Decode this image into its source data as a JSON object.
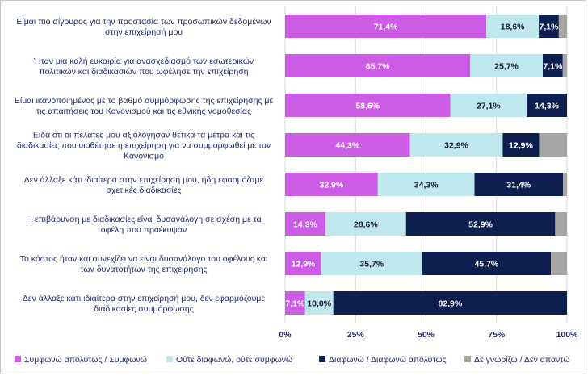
{
  "chart_data": {
    "type": "bar",
    "orientation": "horizontal",
    "stacked": true,
    "categories": [
      [
        "Είμαι πιο σίγουρος για την προστασία των προσωπικών δεδομένων",
        "στην επιχείρησή μου"
      ],
      [
        "Ήταν μια καλή ευκαιρία για ανασχεδιασμό των εσωτερικών",
        "πολιτικών και διαδικασιών που ωφέλησε την επιχείρηση"
      ],
      [
        "Είμαι ικανοποιημένος με το βαθμό συμμόρφωσης της επιχείρησης με",
        "τις απαιτήσεις του Κανονισμού και τις εθνικής νομοθεσίας"
      ],
      [
        "Είδα ότι οι πελάτες μου αξιολόγησαν θετικά τα μέτρα και τις",
        "διαδικασίες που υιοθέτησε η επιχείρηση για να συμμορφωθεί με τον",
        "Κανονισμό"
      ],
      [
        "Δεν άλλαξε κάτι ιδιαίτερα στην επιχείρησή μου, ήδη εφαρμόζαμε",
        "σχετικές διαδικασίες"
      ],
      [
        "Η επιβάρυνση με διαδικασίες είναι δυσανάλογη σε σχέση με τα",
        "οφέλη που προέκυψαν"
      ],
      [
        "Το κόστος ήταν και συνεχίζει να είναι δυσανάλογο του οφέλους και",
        "των δυνατοτήτων της επιχείρησης"
      ],
      [
        "Δεν άλλαξε κάτι ιδιαίτερα στην επιχείρησή μου, δεν εφαρμόζουμε",
        "διαδικασίες συμμόρφωσης"
      ]
    ],
    "series": [
      {
        "name": "Συμφωνώ απολύτως / Συμφωνώ",
        "color": "#cc5ce6",
        "label_color": "#ffffff",
        "values": [
          71.4,
          65.7,
          58.6,
          44.3,
          32.9,
          14.3,
          12.9,
          7.1
        ],
        "labels": [
          "71,4%",
          "65,7%",
          "58,6%",
          "44,3%",
          "32,9%",
          "14,3%",
          "12,9%",
          "7,1%"
        ]
      },
      {
        "name": "Ούτε διαφωνώ, ούτε συμφωνώ",
        "color": "#bfe8ec",
        "label_color": "#1a1a3a",
        "values": [
          18.6,
          25.7,
          27.1,
          32.9,
          34.3,
          28.6,
          35.7,
          10.0
        ],
        "labels": [
          "18,6%",
          "25,7%",
          "27,1%",
          "32,9%",
          "34,3%",
          "28,6%",
          "35,7%",
          "10,0%"
        ]
      },
      {
        "name": "Διαφωνώ / Διαφωνώ απολύτως",
        "color": "#0d1f4f",
        "label_color": "#ffffff",
        "values": [
          7.1,
          7.1,
          14.3,
          12.9,
          31.4,
          52.9,
          45.7,
          82.9
        ],
        "labels": [
          "7,1%",
          "7,1%",
          "14,3%",
          "12,9%",
          "31,4%",
          "52,9%",
          "45,7%",
          "82,9%"
        ]
      },
      {
        "name": "Δε γνωρίζω / Δεν απαντώ",
        "color": "#a6a6a6",
        "label_color": "#ffffff",
        "values": [
          2.9,
          1.5,
          0.0,
          9.9,
          1.4,
          4.2,
          5.7,
          0.0
        ],
        "labels": [
          "",
          "",
          "",
          "",
          "",
          "",
          "",
          ""
        ]
      }
    ],
    "xlim": [
      0,
      100
    ],
    "xticks": [
      "0%",
      "25%",
      "50%",
      "75%",
      "100%"
    ],
    "grid": true,
    "legend_position": "bottom"
  }
}
